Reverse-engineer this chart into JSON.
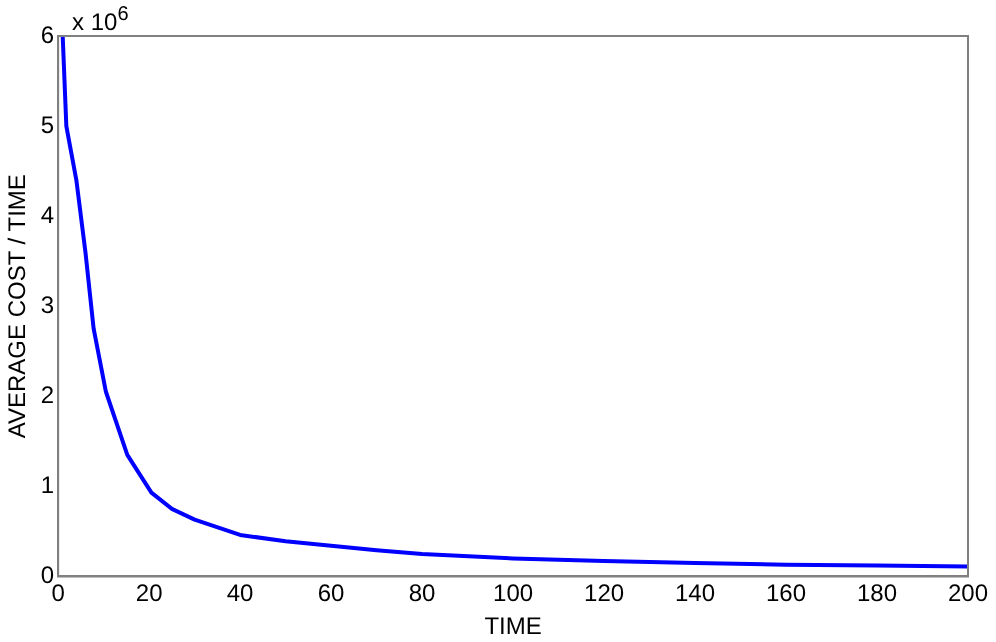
{
  "chart_data": {
    "type": "line",
    "xlabel": "TIME",
    "ylabel": "AVERAGE COST / TIME",
    "annotations": [
      "x 10$^{6}$"
    ],
    "series": [
      {
        "color": "#0000ff",
        "x": [
          1,
          1.8,
          4,
          6,
          7.8,
          10.5,
          15.2,
          20.5,
          25,
          30,
          40,
          50,
          60,
          70,
          80,
          100,
          120,
          140,
          160,
          180,
          200
        ],
        "values": [
          6,
          5,
          4.4,
          3.6,
          2.75,
          2.05,
          1.35,
          0.93,
          0.75,
          0.63,
          0.46,
          0.39,
          0.34,
          0.29,
          0.25,
          0.2,
          0.17,
          0.15,
          0.13,
          0.12,
          0.11
        ]
      }
    ],
    "xlim": [
      0,
      200
    ],
    "ylim": [
      0,
      6
    ],
    "xticks": [
      0,
      20,
      40,
      60,
      80,
      100,
      120,
      140,
      160,
      180,
      200
    ],
    "yticks": [
      0,
      1,
      2,
      3,
      4,
      5,
      6
    ],
    "grid": false,
    "legend": false,
    "line_style": "solid",
    "marker": "none"
  }
}
